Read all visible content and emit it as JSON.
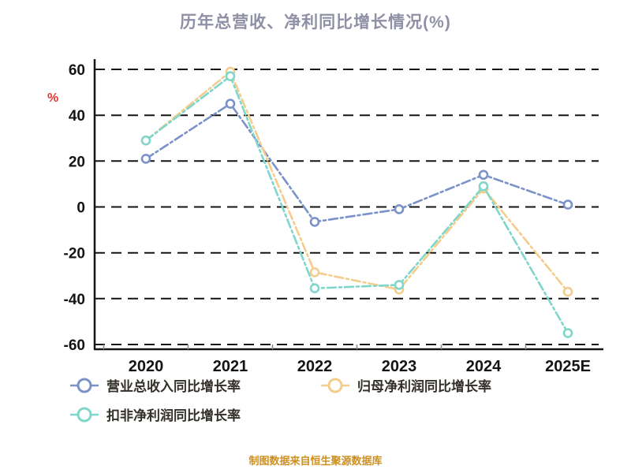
{
  "title": "历年总营收、净利同比增长情况(%)",
  "footer": "制图数据来自恒生聚源数据库",
  "chart_data": {
    "type": "line",
    "title": "历年总营收、净利同比增长情况(%)",
    "categories": [
      "2020",
      "2021",
      "2022",
      "2023",
      "2024",
      "2025E"
    ],
    "series": [
      {
        "id": "revenue-growth",
        "name": "营业总收入同比增长率",
        "color": "#7b92c8",
        "values": [
          21,
          45,
          -6.5,
          -1,
          14,
          1
        ]
      },
      {
        "id": "net-profit-growth",
        "name": "归母净利润同比增长率",
        "color": "#f4cd8c",
        "values": [
          29,
          59,
          -28.5,
          -36,
          8,
          -37
        ]
      },
      {
        "id": "non-gaap-net-profit-growth",
        "name": "扣非净利润同比增长率",
        "color": "#7fd6ca",
        "values": [
          29,
          57,
          -35.5,
          -34,
          9,
          -55
        ]
      }
    ],
    "ylabel": "%",
    "ylim": [
      -60,
      60
    ],
    "ytick_step": 20,
    "grid": true,
    "grid_style": "dashed",
    "line_style": "dash-dot",
    "legend_position": "bottom",
    "axis_color": "#141414"
  }
}
